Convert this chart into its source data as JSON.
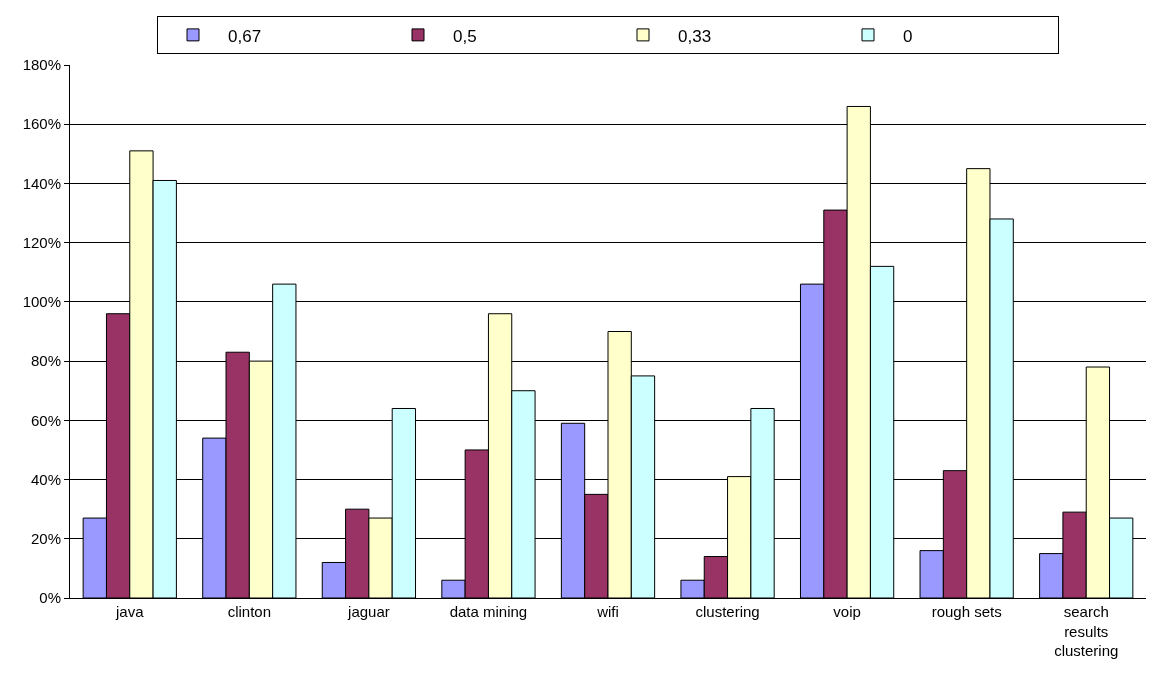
{
  "chart_data": {
    "type": "bar",
    "categories": [
      "java",
      "clinton",
      "jaguar",
      "data mining",
      "wifi",
      "clustering",
      "voip",
      "rough sets",
      "search results clustering"
    ],
    "series": [
      {
        "name": "0,67",
        "color": "#9999ff",
        "values": [
          27,
          54,
          12,
          6,
          59,
          6,
          106,
          16,
          15
        ]
      },
      {
        "name": "0,5",
        "color": "#993366",
        "values": [
          96,
          83,
          30,
          50,
          35,
          14,
          131,
          43,
          29
        ]
      },
      {
        "name": "0,33",
        "color": "#ffffcc",
        "values": [
          151,
          80,
          27,
          96,
          90,
          41,
          166,
          145,
          78
        ]
      },
      {
        "name": "0",
        "color": "#ccffff",
        "values": [
          141,
          106,
          64,
          70,
          75,
          64,
          112,
          128,
          27
        ]
      }
    ],
    "ylim": [
      0,
      180
    ],
    "yticks": [
      {
        "value": 0,
        "label": "0%"
      },
      {
        "value": 20,
        "label": "20%"
      },
      {
        "value": 40,
        "label": "40%"
      },
      {
        "value": 60,
        "label": "60%"
      },
      {
        "value": 80,
        "label": "80%"
      },
      {
        "value": 100,
        "label": "100%"
      },
      {
        "value": 120,
        "label": "120%"
      },
      {
        "value": 140,
        "label": "140%"
      },
      {
        "value": 160,
        "label": "160%"
      },
      {
        "value": 180,
        "label": "180%"
      }
    ],
    "grid": "y",
    "legend": "top"
  }
}
